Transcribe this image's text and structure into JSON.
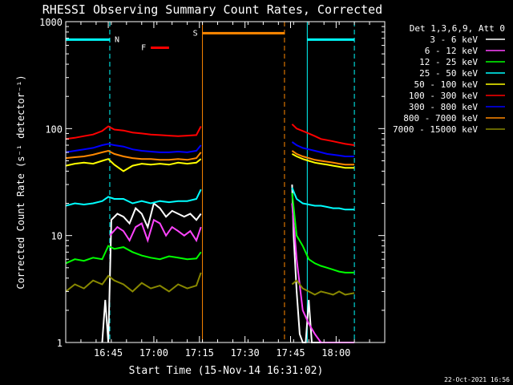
{
  "chart_data": {
    "type": "line",
    "title": "RHESSI Observing Summary Count Rates, Corrected",
    "xlabel": "Start Time (15-Nov-14 16:31:02)",
    "ylabel": "Corrected Count Rate (s⁻¹ detector⁻¹)",
    "yscale": "log",
    "xlim": [
      0,
      105
    ],
    "ylim": [
      1,
      1000
    ],
    "x_ticks": [
      {
        "x": 14,
        "label": "16:45"
      },
      {
        "x": 29,
        "label": "17:00"
      },
      {
        "x": 44,
        "label": "17:15"
      },
      {
        "x": 59,
        "label": "17:30"
      },
      {
        "x": 74,
        "label": "17:45"
      },
      {
        "x": 89,
        "label": "18:00"
      }
    ],
    "y_ticks": [
      {
        "y": 1,
        "label": "1"
      },
      {
        "y": 10,
        "label": "10"
      },
      {
        "y": 100,
        "label": "100"
      },
      {
        "y": 1000,
        "label": "1000"
      }
    ],
    "legend_title": "Det 1,3,6,9, Att 0",
    "legend_position": "outside-right",
    "series": [
      {
        "name": "3 - 6 keV",
        "color": "#ffffff",
        "segments": [
          {
            "x": [
              12,
              13,
              14,
              15,
              17,
              19,
              21,
              23,
              25,
              27,
              29,
              31,
              33,
              35,
              37,
              39,
              41,
              43,
              44.5
            ],
            "y": [
              1.0,
              2.5,
              1.0,
              14,
              16,
              15,
              13,
              18,
              16,
              12,
              20,
              18,
              15,
              17,
              16,
              15,
              16,
              14,
              16
            ]
          },
          {
            "x": [
              74.5,
              75,
              76,
              77,
              78,
              79,
              80,
              81,
              82,
              83,
              84,
              86,
              88,
              90,
              92,
              94,
              95
            ],
            "y": [
              30,
              10,
              3,
              1.2,
              1.0,
              1.0,
              2.5,
              1.0,
              1.0,
              1.0,
              1.0,
              1.0,
              1.0,
              1.0,
              1.0,
              1.0,
              1.0
            ]
          }
        ]
      },
      {
        "name": "6 - 12 keV",
        "color": "#ff44ff",
        "segments": [
          {
            "x": [
              14.5,
              17,
              19,
              21,
              23,
              25,
              27,
              29,
              31,
              33,
              35,
              37,
              39,
              41,
              43,
              44.5
            ],
            "y": [
              10,
              12,
              11,
              9,
              12,
              13,
              9,
              14,
              13,
              10,
              12,
              11,
              10,
              11,
              9,
              12
            ]
          },
          {
            "x": [
              74.5,
              76,
              78,
              80,
              82,
              84,
              86,
              88,
              90,
              92,
              95
            ],
            "y": [
              20,
              6,
              2,
              1.5,
              1.2,
              1.0,
              1.0,
              1.0,
              1.0,
              1.0,
              1.0
            ]
          }
        ]
      },
      {
        "name": "12 - 25 keV",
        "color": "#00ff00",
        "segments": [
          {
            "x": [
              0,
              3,
              6,
              9,
              12,
              14,
              16,
              19,
              22,
              25,
              28,
              31,
              34,
              37,
              40,
              43,
              44.5
            ],
            "y": [
              5.5,
              6,
              5.8,
              6.2,
              6.0,
              8,
              7.5,
              7.8,
              7.0,
              6.5,
              6.2,
              6.0,
              6.4,
              6.2,
              6.0,
              6.1,
              7
            ]
          },
          {
            "x": [
              74.5,
              76,
              78,
              80,
              82,
              84,
              86,
              88,
              90,
              92,
              95
            ],
            "y": [
              25,
              10,
              8,
              6,
              5.5,
              5.2,
              5.0,
              4.8,
              4.6,
              4.5,
              4.5
            ]
          }
        ]
      },
      {
        "name": "25 - 50 keV",
        "color": "#00ffff",
        "segments": [
          {
            "x": [
              0,
              3,
              6,
              9,
              12,
              14,
              16,
              19,
              22,
              25,
              28,
              31,
              34,
              37,
              40,
              43,
              44.5
            ],
            "y": [
              19,
              20,
              19.5,
              20,
              21,
              23,
              22,
              22,
              20,
              21,
              20,
              21,
              20.5,
              21,
              21,
              22,
              27
            ]
          },
          {
            "x": [
              74.5,
              76,
              78,
              80,
              82,
              84,
              86,
              88,
              90,
              92,
              95
            ],
            "y": [
              28,
              22,
              20,
              19.5,
              19,
              19,
              18.5,
              18,
              18,
              17.5,
              17.5
            ]
          }
        ]
      },
      {
        "name": "50 - 100 keV",
        "color": "#ffff00",
        "segments": [
          {
            "x": [
              0,
              3,
              6,
              9,
              12,
              14,
              16,
              19,
              22,
              25,
              28,
              31,
              34,
              37,
              40,
              43,
              44.5
            ],
            "y": [
              45,
              47,
              48,
              47,
              50,
              52,
              46,
              40,
              45,
              47,
              46,
              47,
              46,
              48,
              47,
              48,
              52
            ]
          },
          {
            "x": [
              74.5,
              76,
              78,
              80,
              82,
              84,
              86,
              88,
              90,
              92,
              95
            ],
            "y": [
              58,
              55,
              52,
              50,
              48,
              47,
              46,
              45,
              44,
              43,
              43
            ]
          }
        ]
      },
      {
        "name": "100 - 300 keV",
        "color": "#ff0000",
        "segments": [
          {
            "x": [
              0,
              3,
              6,
              9,
              12,
              14,
              16,
              19,
              22,
              25,
              28,
              31,
              34,
              37,
              40,
              43,
              44.5
            ],
            "y": [
              80,
              82,
              85,
              88,
              95,
              105,
              98,
              96,
              92,
              90,
              88,
              87,
              86,
              85,
              86,
              87,
              105
            ]
          },
          {
            "x": [
              74.5,
              76,
              78,
              80,
              82,
              84,
              86,
              88,
              90,
              92,
              95
            ],
            "y": [
              110,
              100,
              95,
              90,
              85,
              80,
              78,
              76,
              74,
              72,
              70
            ]
          }
        ]
      },
      {
        "name": "300 - 800 keV",
        "color": "#0000ff",
        "segments": [
          {
            "x": [
              0,
              3,
              6,
              9,
              12,
              14,
              16,
              19,
              22,
              25,
              28,
              31,
              34,
              37,
              40,
              43,
              44.5
            ],
            "y": [
              60,
              62,
              64,
              66,
              70,
              72,
              70,
              68,
              64,
              62,
              61,
              60,
              60,
              61,
              60,
              62,
              70
            ]
          },
          {
            "x": [
              74.5,
              76,
              78,
              80,
              82,
              84,
              86,
              88,
              90,
              92,
              95
            ],
            "y": [
              75,
              70,
              66,
              64,
              62,
              60,
              58,
              57,
              56,
              55,
              55
            ]
          }
        ]
      },
      {
        "name": "800 - 7000 keV",
        "color": "#ff8800",
        "segments": [
          {
            "x": [
              0,
              3,
              6,
              9,
              12,
              14,
              16,
              19,
              22,
              25,
              28,
              31,
              34,
              37,
              40,
              43,
              44.5
            ],
            "y": [
              53,
              54,
              55,
              57,
              60,
              62,
              58,
              55,
              53,
              52,
              52,
              51,
              51,
              52,
              51,
              53,
              60
            ]
          },
          {
            "x": [
              74.5,
              76,
              78,
              80,
              82,
              84,
              86,
              88,
              90,
              92,
              95
            ],
            "y": [
              62,
              58,
              55,
              53,
              51,
              50,
              49,
              48,
              47,
              46,
              46
            ]
          }
        ]
      },
      {
        "name": "7000 - 15000 keV",
        "color": "#888800",
        "segments": [
          {
            "x": [
              0,
              3,
              6,
              9,
              12,
              14,
              16,
              19,
              22,
              25,
              28,
              31,
              34,
              37,
              40,
              43,
              44.5
            ],
            "y": [
              3.0,
              3.5,
              3.2,
              3.8,
              3.5,
              4.2,
              3.8,
              3.5,
              3.0,
              3.6,
              3.2,
              3.4,
              3.0,
              3.5,
              3.2,
              3.4,
              4.5
            ]
          },
          {
            "x": [
              74.5,
              76,
              78,
              80,
              82,
              84,
              86,
              88,
              90,
              92,
              95
            ],
            "y": [
              3.5,
              3.8,
              3.2,
              3.0,
              2.8,
              3.0,
              2.9,
              2.8,
              3.0,
              2.8,
              2.9
            ]
          }
        ]
      }
    ],
    "annotations": {
      "night": {
        "label": "N",
        "color": "#00ffff",
        "level": 680,
        "intervals": [
          [
            0,
            14.5
          ],
          [
            79.5,
            95
          ]
        ],
        "dashed_x": [
          14.5,
          95
        ],
        "solid_x": [
          79.5
        ]
      },
      "saa": {
        "label": "S",
        "color": "#ff8800",
        "level": 780,
        "intervals": [
          [
            45,
            72
          ]
        ],
        "solid_x": [
          45
        ],
        "dashed_x": [
          72
        ]
      },
      "flare": {
        "label": "F",
        "color": "#ff0000",
        "level": 570,
        "intervals": [
          [
            28,
            34
          ]
        ]
      }
    }
  },
  "footer": {
    "timestamp": "22-Oct-2021 16:56"
  }
}
